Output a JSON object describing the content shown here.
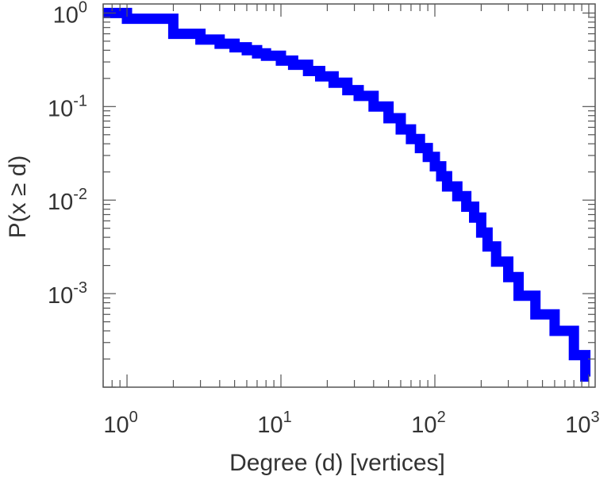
{
  "chart_data": {
    "type": "line",
    "title": "",
    "xlabel": "Degree (d) [vertices]",
    "ylabel": "P(x ≥ d)",
    "x_scale": "log",
    "y_scale": "log",
    "xlim": [
      0.7,
      1100
    ],
    "ylim": [
      0.0001,
      1.25
    ],
    "grid": false,
    "legend": "none",
    "colors": {
      "series": "#0000ff",
      "axes": "#555555",
      "text": "#333333"
    },
    "x_ticks": [
      {
        "value": 1,
        "base": "10",
        "exp": "0"
      },
      {
        "value": 10,
        "base": "10",
        "exp": "1"
      },
      {
        "value": 100,
        "base": "10",
        "exp": "2"
      },
      {
        "value": 1000,
        "base": "10",
        "exp": "3"
      }
    ],
    "y_ticks": [
      {
        "value": 1,
        "base": "10",
        "exp": "0"
      },
      {
        "value": 0.1,
        "base": "10",
        "exp": "-1"
      },
      {
        "value": 0.01,
        "base": "10",
        "exp": "-2"
      },
      {
        "value": 0.001,
        "base": "10",
        "exp": "-3"
      }
    ],
    "series": [
      {
        "step": true,
        "x": [
          0.7,
          1,
          2,
          3,
          4,
          5,
          6,
          7,
          8,
          10,
          12,
          15,
          18,
          22,
          27,
          32,
          40,
          50,
          60,
          70,
          80,
          90,
          100,
          110,
          120,
          140,
          160,
          180,
          200,
          220,
          250,
          300,
          350,
          450,
          600,
          800,
          950,
          1000
        ],
        "y": [
          1.0,
          0.87,
          0.6,
          0.52,
          0.47,
          0.43,
          0.4,
          0.37,
          0.35,
          0.31,
          0.28,
          0.24,
          0.21,
          0.18,
          0.15,
          0.13,
          0.1,
          0.075,
          0.057,
          0.045,
          0.036,
          0.029,
          0.023,
          0.018,
          0.014,
          0.011,
          0.0085,
          0.0065,
          0.0045,
          0.0032,
          0.0022,
          0.0015,
          0.00095,
          0.0006,
          0.0004,
          0.00022,
          0.00013,
          0.00013
        ]
      }
    ]
  }
}
